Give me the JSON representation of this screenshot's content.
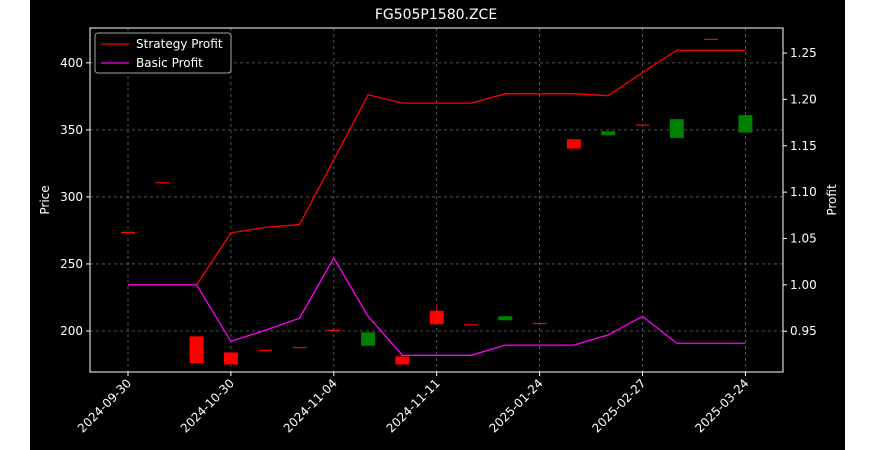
{
  "chart_data": {
    "type": "candlestick",
    "title": "FG505P1580.ZCE",
    "ylabel": "Price",
    "y2label": "Profit",
    "categories": [
      "2024-09-30",
      null,
      null,
      "2024-10-30",
      null,
      null,
      "2024-11-04",
      null,
      null,
      "2024-11-11",
      null,
      null,
      "2025-01-24",
      null,
      null,
      "2025-02-27",
      null,
      null,
      "2025-03-24"
    ],
    "open": [
      274,
      311,
      196,
      184,
      186,
      188,
      201,
      189,
      181,
      215,
      205,
      208,
      206,
      343,
      346,
      354,
      344,
      418,
      348
    ],
    "high": [
      274,
      311,
      196,
      184,
      186,
      188,
      201,
      199,
      181,
      220,
      205,
      211,
      206,
      343,
      349,
      354,
      358,
      418,
      361
    ],
    "low": [
      274,
      311,
      176,
      175,
      186,
      188,
      201,
      189,
      175,
      205,
      205,
      208,
      206,
      336,
      346,
      354,
      344,
      418,
      348
    ],
    "close": [
      274,
      311,
      176,
      175,
      186,
      188,
      201,
      199,
      175,
      205,
      205,
      211,
      206,
      336,
      349,
      354,
      358,
      418,
      361
    ],
    "up_color": "#008000",
    "down_color": "#ff0000",
    "series": [
      {
        "name": "Strategy Profit",
        "color": "#ff0000",
        "axis": "y2",
        "values": [
          1.0,
          1.0,
          1.0,
          1.056,
          1.062,
          1.065,
          1.135,
          1.205,
          1.196,
          1.196,
          1.196,
          1.206,
          1.206,
          1.206,
          1.204,
          1.229,
          1.253,
          1.253,
          1.253
        ]
      },
      {
        "name": "Basic Profit",
        "color": "#ff00ff",
        "axis": "y2",
        "values": [
          1.0,
          1.0,
          1.0,
          0.939,
          0.951,
          0.964,
          1.029,
          0.966,
          0.924,
          0.924,
          0.924,
          0.935,
          0.935,
          0.935,
          0.946,
          0.966,
          0.937,
          0.937,
          0.937
        ]
      }
    ],
    "ylim": [
      169.4,
      426
    ],
    "yticks": [
      200,
      250,
      300,
      350,
      400
    ],
    "y2lim": [
      0.906,
      1.277
    ],
    "y2ticks": [
      0.95,
      {
        "value": 1.0,
        "label": "1.00"
      },
      1.05,
      {
        "value": 1.1,
        "label": "1.10"
      },
      1.15,
      {
        "value": 1.2,
        "label": "1.20"
      },
      1.25
    ],
    "grid": true,
    "legend": "upper left"
  }
}
